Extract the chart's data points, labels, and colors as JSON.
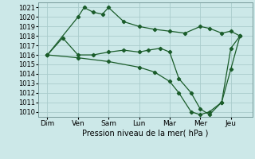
{
  "xlabel": "Pression niveau de la mer( hPa )",
  "bg_color": "#cce8e8",
  "grid_color": "#aacccc",
  "line_color": "#1a5c2a",
  "x_ticks": [
    0,
    1,
    2,
    3,
    4,
    5,
    6
  ],
  "x_labels": [
    "Dim",
    "Ven",
    "Sam",
    "Lun",
    "Mar",
    "Mer",
    "Jeu"
  ],
  "ylim": [
    1009.5,
    1021.5
  ],
  "yticks": [
    1010,
    1011,
    1012,
    1013,
    1014,
    1015,
    1016,
    1017,
    1018,
    1019,
    1020,
    1021
  ],
  "line1_x": [
    0.0,
    1.0,
    1.2,
    1.5,
    1.8,
    2.0,
    2.5,
    3.0,
    3.5,
    4.0,
    4.5,
    5.0,
    5.3,
    5.7,
    6.0,
    6.3
  ],
  "line1_y": [
    1016.0,
    1020.0,
    1021.0,
    1020.5,
    1020.3,
    1021.0,
    1019.5,
    1019.0,
    1018.7,
    1018.5,
    1018.3,
    1019.0,
    1018.8,
    1018.3,
    1018.5,
    1018.0
  ],
  "line2_x": [
    0.0,
    0.5,
    1.0,
    1.5,
    2.0,
    2.5,
    3.0,
    3.3,
    3.7,
    4.0,
    4.3,
    4.7,
    5.0,
    5.3,
    5.7,
    6.0,
    6.3
  ],
  "line2_y": [
    1016.0,
    1017.8,
    1016.0,
    1016.0,
    1016.3,
    1016.5,
    1016.3,
    1016.5,
    1016.7,
    1016.3,
    1013.5,
    1012.0,
    1010.3,
    1009.7,
    1011.0,
    1016.7,
    1018.0
  ],
  "line3_x": [
    0.0,
    1.0,
    2.0,
    3.0,
    3.5,
    4.0,
    4.3,
    4.7,
    5.0,
    5.3,
    5.7,
    6.0,
    6.3
  ],
  "line3_y": [
    1016.0,
    1015.7,
    1015.3,
    1014.7,
    1014.2,
    1013.2,
    1012.0,
    1010.0,
    1009.7,
    1010.0,
    1011.0,
    1014.5,
    1018.0
  ]
}
